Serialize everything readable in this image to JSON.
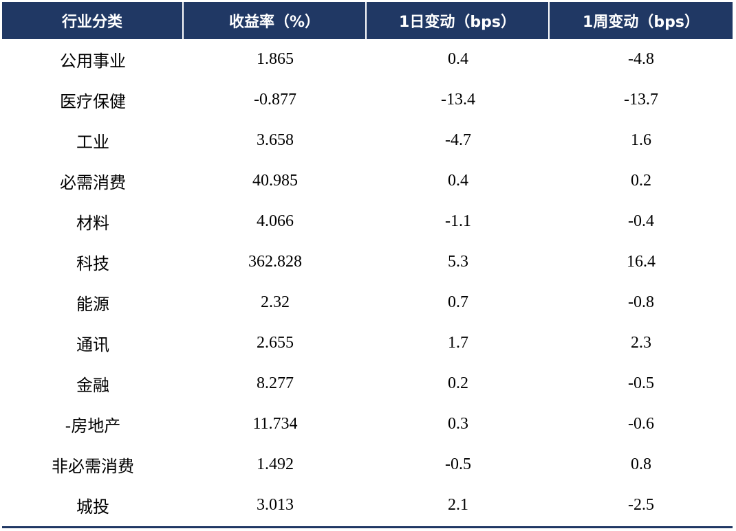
{
  "table": {
    "headers": [
      "行业分类",
      "收益率（%）",
      "1日变动（bps）",
      "1周变动（bps）"
    ],
    "rows": [
      [
        "公用事业",
        "1.865",
        "0.4",
        "-4.8"
      ],
      [
        "医疗保健",
        "-0.877",
        "-13.4",
        "-13.7"
      ],
      [
        "工业",
        "3.658",
        "-4.7",
        "1.6"
      ],
      [
        "必需消费",
        "40.985",
        "0.4",
        "0.2"
      ],
      [
        "材料",
        "4.066",
        "-1.1",
        "-0.4"
      ],
      [
        "科技",
        "362.828",
        "5.3",
        "16.4"
      ],
      [
        "能源",
        "2.32",
        "0.7",
        "-0.8"
      ],
      [
        "通讯",
        "2.655",
        "1.7",
        "2.3"
      ],
      [
        "金融",
        "8.277",
        "0.2",
        "-0.5"
      ],
      [
        "-房地产",
        "11.734",
        "0.3",
        "-0.6"
      ],
      [
        "非必需消费",
        "1.492",
        "-0.5",
        "0.8"
      ],
      [
        "城投",
        "3.013",
        "2.1",
        "-2.5"
      ]
    ]
  },
  "colors": {
    "header_bg": "#203864",
    "header_text": "#ffffff",
    "body_text": "#000000"
  }
}
